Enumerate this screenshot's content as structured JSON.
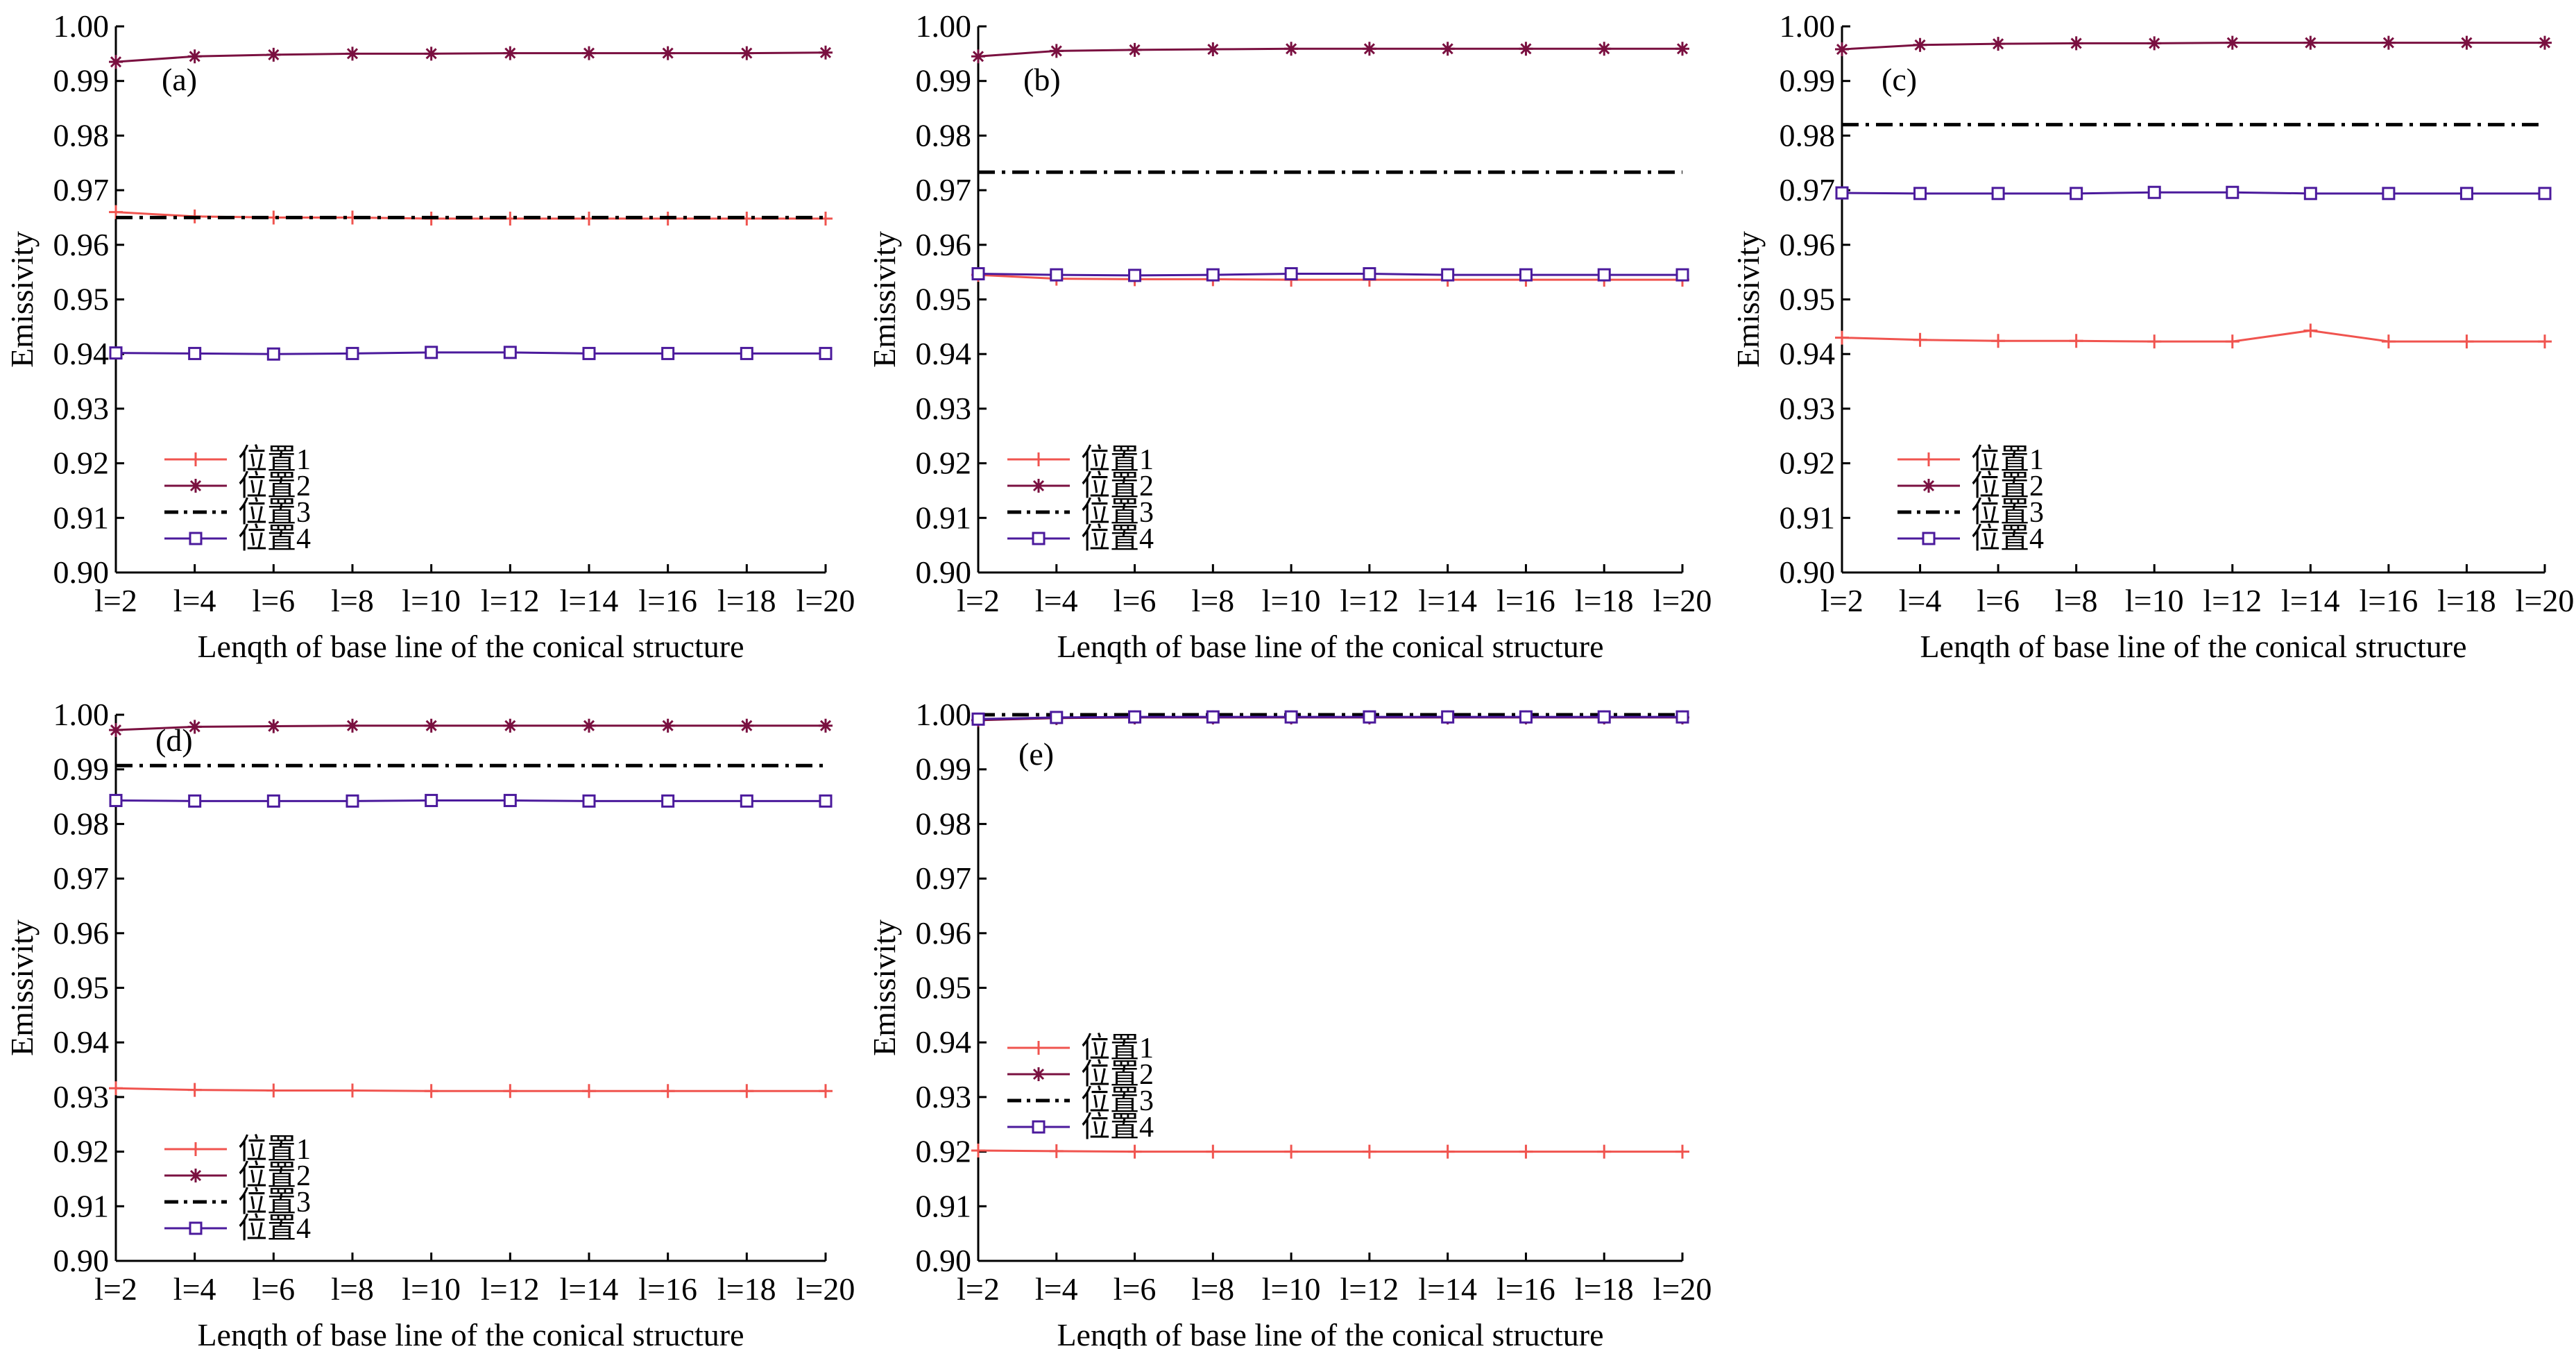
{
  "colors": {
    "series1": "#f0544f",
    "series2": "#7a1040",
    "series3": "#000000",
    "series4": "#4b1a9c"
  },
  "chart_data": [
    {
      "type": "line",
      "panel_label": "(a)",
      "xlabel": "Lenqth of base line of the conical structure",
      "ylabel": "Emissivity",
      "categories": [
        "l=2",
        "l=4",
        "l=6",
        "l=8",
        "l=10",
        "l=12",
        "l=14",
        "l=16",
        "l=18",
        "l=20"
      ],
      "ylim": [
        0.9,
        1.0
      ],
      "yticks": [
        "0.90",
        "0.91",
        "0.92",
        "0.93",
        "0.94",
        "0.95",
        "0.96",
        "0.97",
        "0.98",
        "0.99",
        "1.00"
      ],
      "legend_position": "lower-left",
      "grid": false,
      "series": [
        {
          "name": "位置1",
          "marker": "plus",
          "style": "solid",
          "values": [
            0.966,
            0.9652,
            0.965,
            0.965,
            0.9648,
            0.9648,
            0.9648,
            0.9648,
            0.9648,
            0.9648
          ]
        },
        {
          "name": "位置2",
          "marker": "star",
          "style": "solid",
          "values": [
            0.9935,
            0.9945,
            0.9948,
            0.995,
            0.995,
            0.9951,
            0.9951,
            0.9951,
            0.9951,
            0.9952
          ]
        },
        {
          "name": "位置3",
          "marker": "none",
          "style": "dashdot",
          "values": [
            0.965,
            0.965,
            0.965,
            0.965,
            0.965,
            0.965,
            0.965,
            0.965,
            0.965,
            0.965
          ]
        },
        {
          "name": "位置4",
          "marker": "square",
          "style": "solid",
          "values": [
            0.9402,
            0.9401,
            0.94,
            0.9401,
            0.9403,
            0.9403,
            0.9401,
            0.9401,
            0.9401,
            0.9401
          ]
        }
      ]
    },
    {
      "type": "line",
      "panel_label": "(b)",
      "xlabel": "Lenqth of base line of the conical structure",
      "ylabel": "Emissivity",
      "categories": [
        "l=2",
        "l=4",
        "l=6",
        "l=8",
        "l=10",
        "l=12",
        "l=14",
        "l=16",
        "l=18",
        "l=20"
      ],
      "ylim": [
        0.9,
        1.0
      ],
      "yticks": [
        "0.90",
        "0.91",
        "0.92",
        "0.93",
        "0.94",
        "0.95",
        "0.96",
        "0.97",
        "0.98",
        "0.99",
        "1.00"
      ],
      "legend_position": "lower-left",
      "grid": false,
      "series": [
        {
          "name": "位置1",
          "marker": "plus",
          "style": "solid",
          "values": [
            0.9545,
            0.9538,
            0.9537,
            0.9537,
            0.9536,
            0.9536,
            0.9536,
            0.9536,
            0.9536,
            0.9536
          ]
        },
        {
          "name": "位置2",
          "marker": "star",
          "style": "solid",
          "values": [
            0.9945,
            0.9955,
            0.9957,
            0.9958,
            0.9959,
            0.9959,
            0.9959,
            0.9959,
            0.9959,
            0.9959
          ]
        },
        {
          "name": "位置3",
          "marker": "none",
          "style": "dashdot",
          "values": [
            0.9733,
            0.9733,
            0.9733,
            0.9733,
            0.9733,
            0.9733,
            0.9733,
            0.9733,
            0.9733,
            0.9733
          ]
        },
        {
          "name": "位置4",
          "marker": "square",
          "style": "solid",
          "values": [
            0.9547,
            0.9545,
            0.9544,
            0.9545,
            0.9547,
            0.9547,
            0.9545,
            0.9545,
            0.9545,
            0.9545
          ]
        }
      ]
    },
    {
      "type": "line",
      "panel_label": "(c)",
      "xlabel": "Lenqth of base line of the conical structure",
      "ylabel": "Emissivity",
      "categories": [
        "l=2",
        "l=4",
        "l=6",
        "l=8",
        "l=10",
        "l=12",
        "l=14",
        "l=16",
        "l=18",
        "l=20"
      ],
      "ylim": [
        0.9,
        1.0
      ],
      "yticks": [
        "0.90",
        "0.91",
        "0.92",
        "0.93",
        "0.94",
        "0.95",
        "0.96",
        "0.97",
        "0.98",
        "0.99",
        "1.00"
      ],
      "legend_position": "lower-left",
      "grid": false,
      "series": [
        {
          "name": "位置1",
          "marker": "plus",
          "style": "solid",
          "values": [
            0.943,
            0.9426,
            0.9424,
            0.9424,
            0.9423,
            0.9423,
            0.9443,
            0.9423,
            0.9423,
            0.9423
          ]
        },
        {
          "name": "位置2",
          "marker": "star",
          "style": "solid",
          "values": [
            0.9958,
            0.9966,
            0.9968,
            0.9969,
            0.9969,
            0.997,
            0.997,
            0.997,
            0.997,
            0.997
          ]
        },
        {
          "name": "位置3",
          "marker": "none",
          "style": "dashdot",
          "values": [
            0.982,
            0.982,
            0.982,
            0.982,
            0.982,
            0.982,
            0.982,
            0.982,
            0.982,
            0.982
          ]
        },
        {
          "name": "位置4",
          "marker": "square",
          "style": "solid",
          "values": [
            0.9695,
            0.9694,
            0.9694,
            0.9694,
            0.9696,
            0.9696,
            0.9694,
            0.9694,
            0.9694,
            0.9694
          ]
        }
      ]
    },
    {
      "type": "line",
      "panel_label": "(d)",
      "xlabel": "Lenqth of base line of the conical structure",
      "ylabel": "Emissivity",
      "categories": [
        "l=2",
        "l=4",
        "l=6",
        "l=8",
        "l=10",
        "l=12",
        "l=14",
        "l=16",
        "l=18",
        "l=20"
      ],
      "ylim": [
        0.9,
        1.0
      ],
      "yticks": [
        "0.90",
        "0.91",
        "0.92",
        "0.93",
        "0.94",
        "0.95",
        "0.96",
        "0.97",
        "0.98",
        "0.99",
        "1.00"
      ],
      "legend_position": "lower-left",
      "grid": false,
      "series": [
        {
          "name": "位置1",
          "marker": "plus",
          "style": "solid",
          "values": [
            0.9316,
            0.9313,
            0.9312,
            0.9312,
            0.9311,
            0.9311,
            0.9311,
            0.9311,
            0.9311,
            0.9311
          ]
        },
        {
          "name": "位置2",
          "marker": "star",
          "style": "solid",
          "values": [
            0.9972,
            0.9978,
            0.9979,
            0.998,
            0.998,
            0.998,
            0.998,
            0.998,
            0.998,
            0.998
          ]
        },
        {
          "name": "位置3",
          "marker": "none",
          "style": "dashdot",
          "values": [
            0.9907,
            0.9907,
            0.9907,
            0.9907,
            0.9907,
            0.9907,
            0.9907,
            0.9907,
            0.9907,
            0.9907
          ]
        },
        {
          "name": "位置4",
          "marker": "square",
          "style": "solid",
          "values": [
            0.9843,
            0.9842,
            0.9842,
            0.9842,
            0.9843,
            0.9843,
            0.9842,
            0.9842,
            0.9842,
            0.9842
          ]
        }
      ]
    },
    {
      "type": "line",
      "panel_label": "(e)",
      "xlabel": "Lenqth of base line of the conical structure",
      "ylabel": "Emissivity",
      "categories": [
        "l=2",
        "l=4",
        "l=6",
        "l=8",
        "l=10",
        "l=12",
        "l=14",
        "l=16",
        "l=18",
        "l=20"
      ],
      "ylim": [
        0.9,
        1.0
      ],
      "yticks": [
        "0.90",
        "0.91",
        "0.92",
        "0.93",
        "0.94",
        "0.95",
        "0.96",
        "0.97",
        "0.98",
        "0.99",
        "1.00"
      ],
      "legend_position": "lower-left",
      "grid": false,
      "series": [
        {
          "name": "位置1",
          "marker": "plus",
          "style": "solid",
          "values": [
            0.9202,
            0.9201,
            0.92,
            0.92,
            0.92,
            0.92,
            0.92,
            0.92,
            0.92,
            0.92
          ]
        },
        {
          "name": "位置2",
          "marker": "star",
          "style": "solid",
          "values": [
            0.999,
            0.9994,
            0.9995,
            0.9995,
            0.9995,
            0.9995,
            0.9995,
            0.9995,
            0.9995,
            0.9995
          ]
        },
        {
          "name": "位置3",
          "marker": "none",
          "style": "dashdot",
          "values": [
            1.0,
            1.0,
            1.0,
            1.0,
            1.0,
            1.0,
            1.0,
            1.0,
            1.0,
            1.0
          ]
        },
        {
          "name": "位置4",
          "marker": "square",
          "style": "solid",
          "values": [
            0.9992,
            0.9995,
            0.9996,
            0.9996,
            0.9996,
            0.9996,
            0.9996,
            0.9996,
            0.9996,
            0.9996
          ]
        }
      ]
    }
  ]
}
